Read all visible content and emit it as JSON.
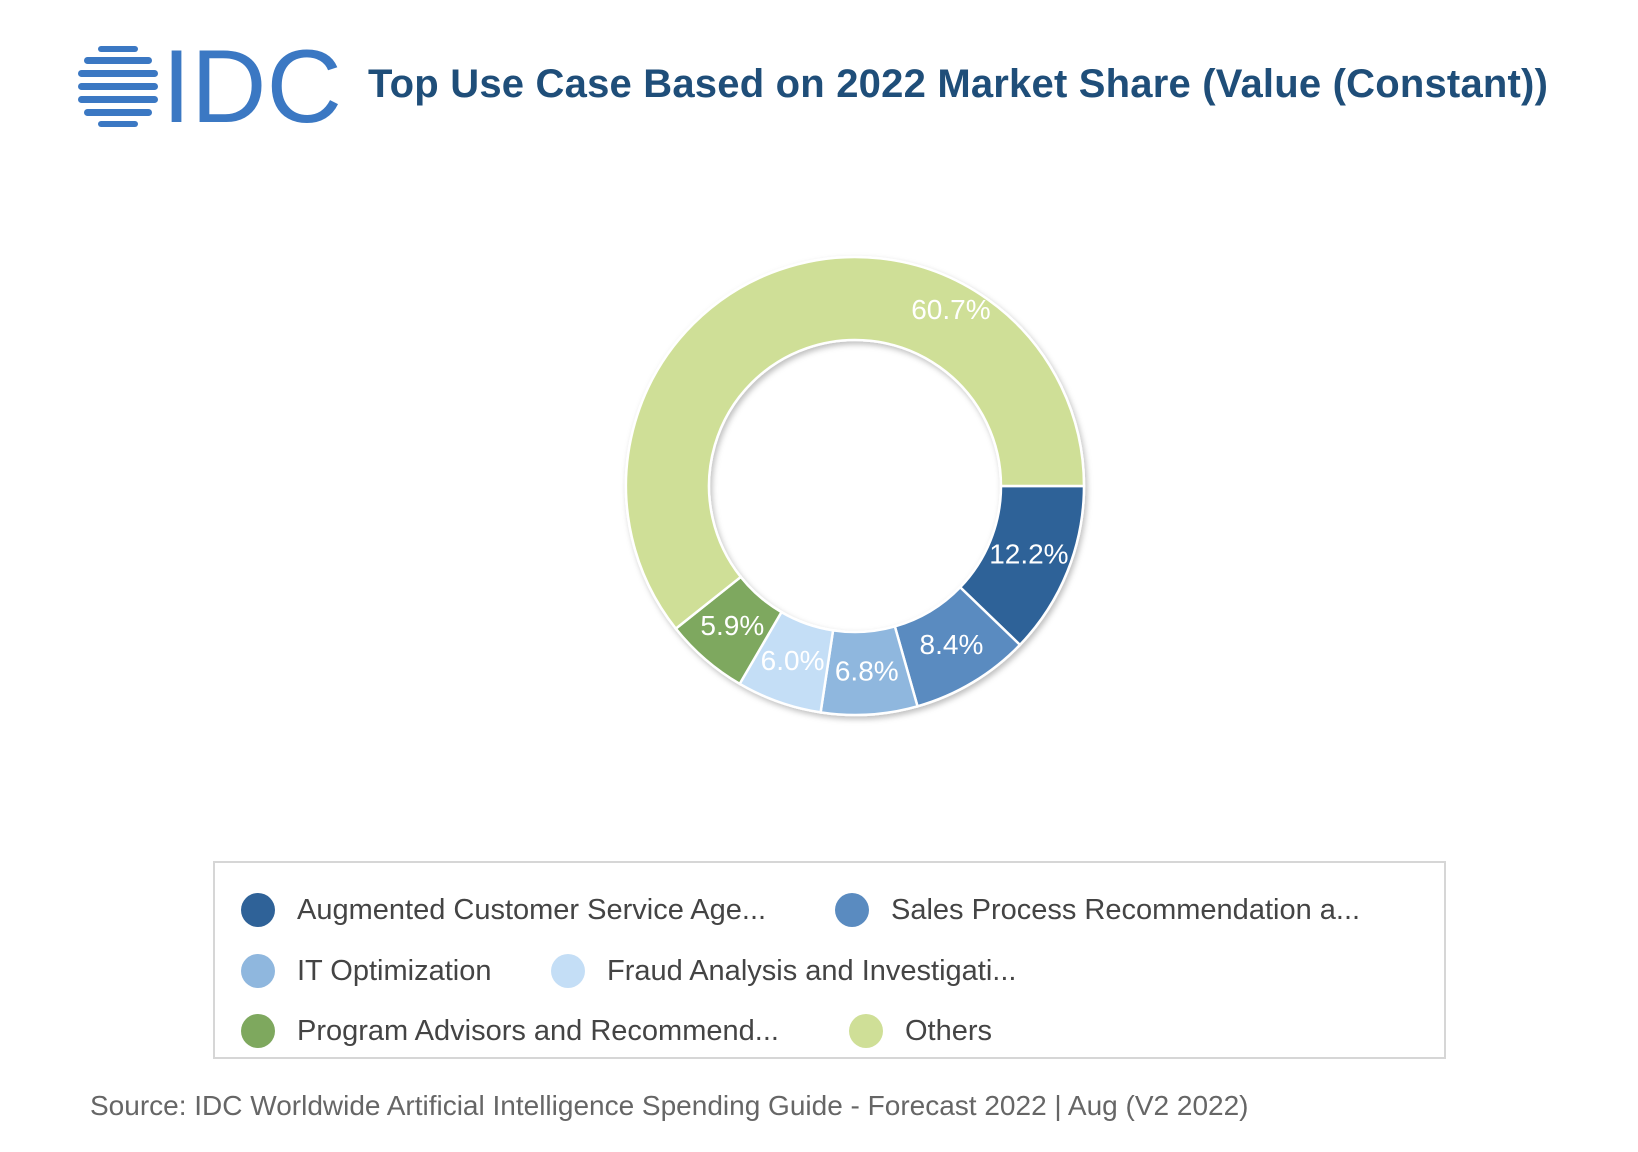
{
  "header": {
    "logo_text": "IDC",
    "title": "Top Use Case Based on 2022 Market Share (Value (Constant))"
  },
  "chart_data": {
    "type": "pie",
    "donut": true,
    "title": "Top Use Case Based on 2022 Market Share (Value (Constant))",
    "series": [
      {
        "name": "Augmented Customer Service Age...",
        "value": 12.2,
        "label": "12.2%",
        "color": "#2f6298"
      },
      {
        "name": "Sales Process Recommendation a...",
        "value": 8.4,
        "label": "8.4%",
        "color": "#5a8bc0"
      },
      {
        "name": "IT Optimization",
        "value": 6.8,
        "label": "6.8%",
        "color": "#8fb7de"
      },
      {
        "name": "Fraud Analysis and Investigati...",
        "value": 6.0,
        "label": "6.0%",
        "color": "#c4def6"
      },
      {
        "name": "Program Advisors and Recommend...",
        "value": 5.9,
        "label": "5.9%",
        "color": "#7ea85e"
      },
      {
        "name": "Others",
        "value": 60.7,
        "label": "60.7%",
        "color": "#cfdf97"
      }
    ],
    "legend_position": "bottom"
  },
  "source": "Source: IDC Worldwide Artificial Intelligence Spending Guide - Forecast 2022 | Aug (V2 2022)"
}
